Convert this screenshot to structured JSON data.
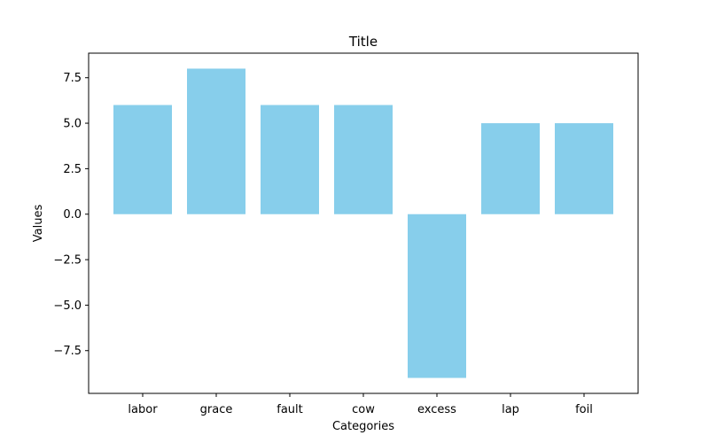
{
  "chart_data": {
    "type": "bar",
    "title": "Title",
    "xlabel": "Categories",
    "ylabel": "Values",
    "categories": [
      "labor",
      "grace",
      "fault",
      "cow",
      "excess",
      "lap",
      "foil"
    ],
    "values": [
      6,
      8,
      6,
      6,
      -9,
      5,
      5
    ],
    "ylim": [
      -9.85,
      8.85
    ],
    "yticks": [
      -7.5,
      -5.0,
      -2.5,
      0.0,
      2.5,
      5.0,
      7.5
    ],
    "ytick_labels": [
      "−7.5",
      "−5.0",
      "−2.5",
      "0.0",
      "2.5",
      "5.0",
      "7.5"
    ],
    "bar_color": "#87ceeb",
    "grid": false,
    "legend": false
  }
}
